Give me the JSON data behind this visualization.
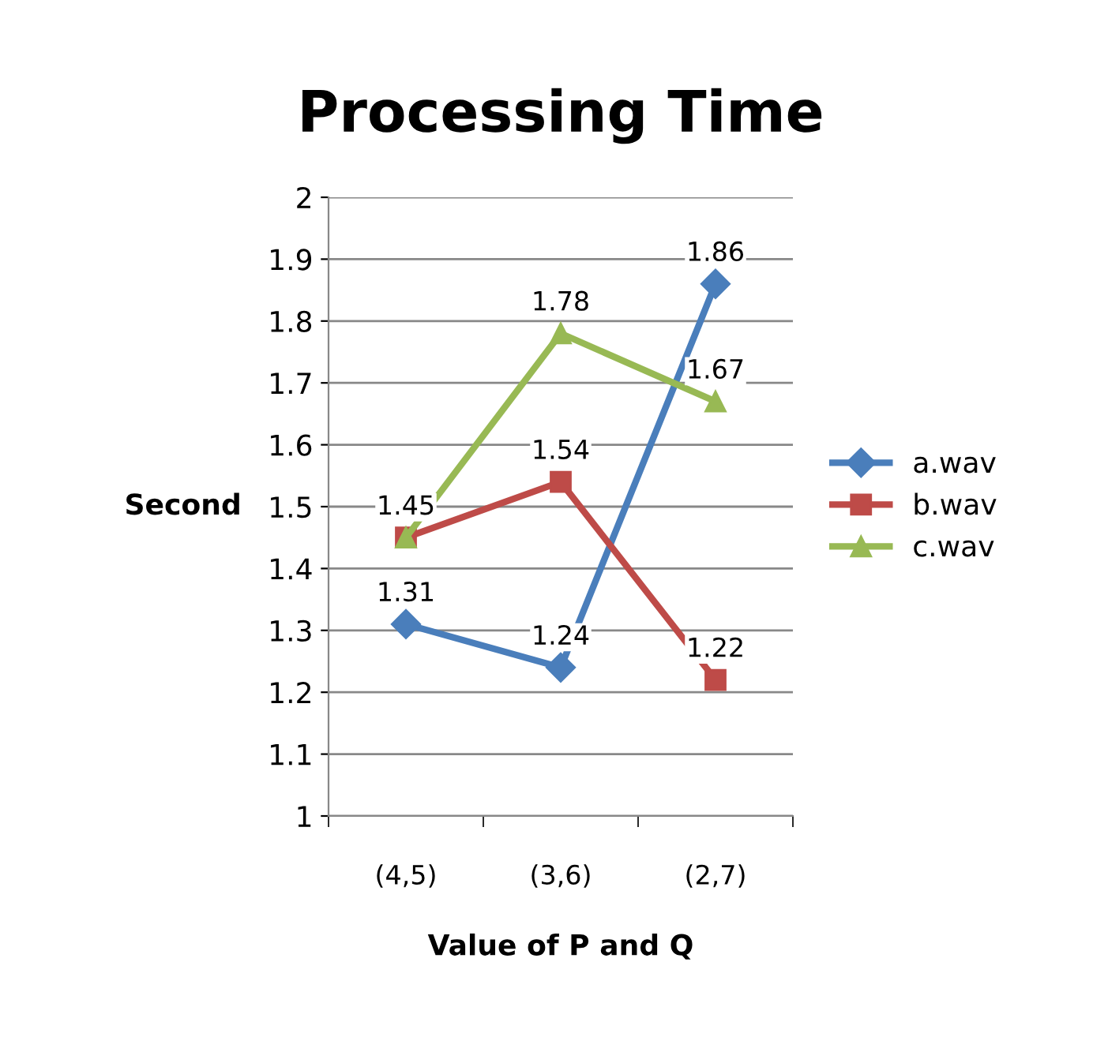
{
  "chart_data": {
    "type": "line",
    "title": "Processing Time",
    "xlabel": "Value of P and Q",
    "ylabel": "Second",
    "categories": [
      "(4,5)",
      "(3,6)",
      "(2,7)"
    ],
    "series": [
      {
        "name": "a.wav",
        "color": "#4a7ebb",
        "marker": "diamond",
        "values": [
          1.31,
          1.24,
          1.86
        ],
        "value_labels": [
          "1.31",
          "1.24",
          "1.86"
        ]
      },
      {
        "name": "b.wav",
        "color": "#be4b48",
        "marker": "square",
        "values": [
          1.45,
          1.54,
          1.22
        ],
        "value_labels": [
          "1.45",
          "1.54",
          "1.22"
        ]
      },
      {
        "name": "c.wav",
        "color": "#98b954",
        "marker": "triangle",
        "values": [
          1.45,
          1.78,
          1.67
        ],
        "value_labels": [
          null,
          "1.78",
          "1.67"
        ]
      }
    ],
    "ylim": [
      1,
      2
    ],
    "yticks": [
      1,
      1.1,
      1.2,
      1.3,
      1.4,
      1.5,
      1.6,
      1.7,
      1.8,
      1.9,
      2
    ],
    "grid": "y",
    "legend": "right",
    "line_style": "solid"
  }
}
